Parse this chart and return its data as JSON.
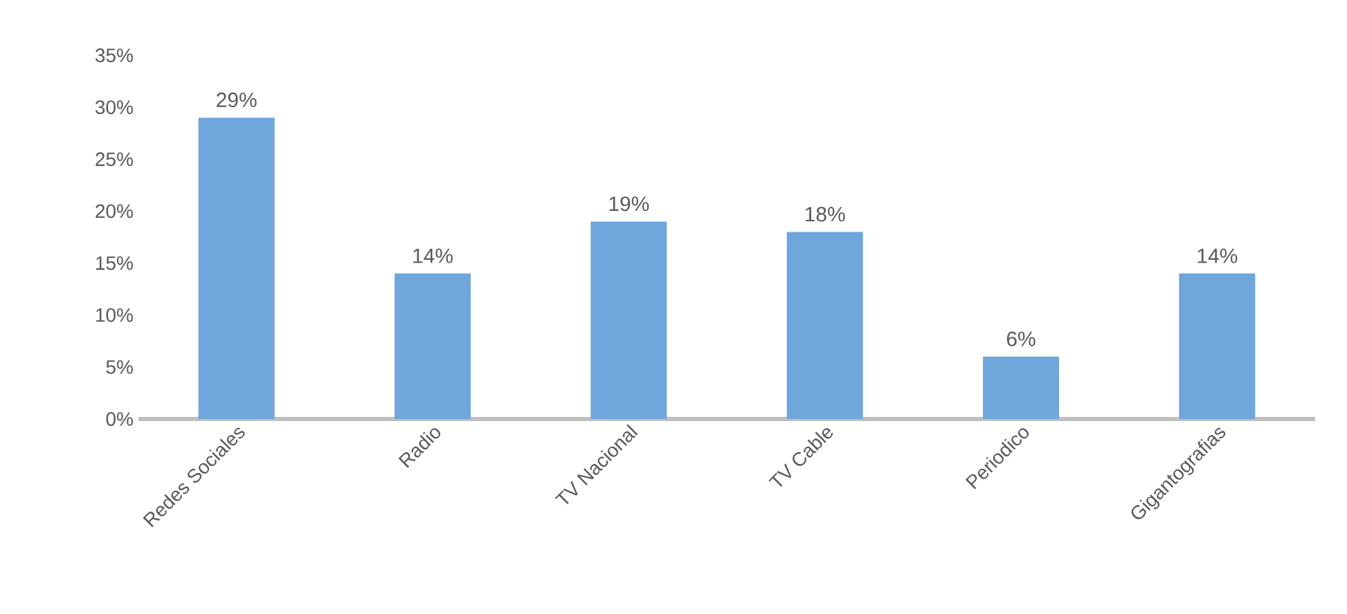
{
  "chart_data": {
    "type": "bar",
    "categories": [
      "Redes Sociales",
      "Radio",
      "TV Nacional",
      "TV Cable",
      "Periodico",
      "Gigantografias"
    ],
    "values": [
      29,
      14,
      19,
      18,
      6,
      14
    ],
    "value_labels": [
      "29%",
      "14%",
      "19%",
      "18%",
      "6%",
      "14%"
    ],
    "color": "#6fa6dc",
    "ylim": [
      0,
      35
    ],
    "yticks": [
      {
        "value": 0,
        "label": "0%"
      },
      {
        "value": 5,
        "label": "5%"
      },
      {
        "value": 10,
        "label": "10%"
      },
      {
        "value": 15,
        "label": "15%"
      },
      {
        "value": 20,
        "label": "20%"
      },
      {
        "value": 25,
        "label": "25%"
      },
      {
        "value": 30,
        "label": "30%"
      },
      {
        "value": 35,
        "label": "35%"
      }
    ],
    "grid": false
  }
}
